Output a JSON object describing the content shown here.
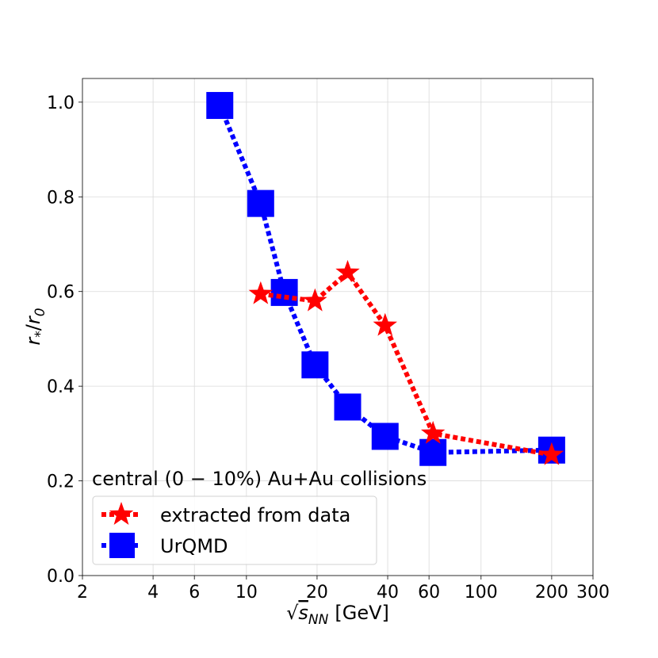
{
  "chart_data": {
    "type": "line",
    "xscale": "log",
    "xlabel_prefix": "√",
    "xlabel_var": "s",
    "xlabel_sub": "NN",
    "xlabel_unit": "[GeV]",
    "ylabel_var": "r",
    "ylabel_sub": "*",
    "ylabel_sep": "/",
    "ylabel_var2": "r",
    "ylabel_sub2": "0",
    "xlim": [
      2,
      300
    ],
    "ylim": [
      0.0,
      1.05
    ],
    "x_ticks": [
      {
        "value": 2,
        "label": "2"
      },
      {
        "value": 4,
        "label": "4"
      },
      {
        "value": 6,
        "label": "6"
      },
      {
        "value": 10,
        "label": "10"
      },
      {
        "value": 20,
        "label": "20"
      },
      {
        "value": 40,
        "label": "40"
      },
      {
        "value": 60,
        "label": "60"
      },
      {
        "value": 100,
        "label": "100"
      },
      {
        "value": 200,
        "label": "200"
      },
      {
        "value": 300,
        "label": "300"
      }
    ],
    "y_ticks": [
      {
        "value": 0.0,
        "label": "0.0"
      },
      {
        "value": 0.2,
        "label": "0.2"
      },
      {
        "value": 0.4,
        "label": "0.4"
      },
      {
        "value": 0.6,
        "label": "0.6"
      },
      {
        "value": 0.8,
        "label": "0.8"
      },
      {
        "value": 1.0,
        "label": "1.0"
      }
    ],
    "grid": true,
    "legend_title": "central (0 − 10%) Au+Au collisions",
    "legend_position": "bottom-left",
    "series": [
      {
        "name": "extracted from data",
        "color": "#ff0000",
        "marker": "star",
        "linestyle": "dotted",
        "x": [
          11.5,
          19.6,
          27,
          39,
          62.4,
          200
        ],
        "y": [
          0.595,
          0.58,
          0.64,
          0.528,
          0.3,
          0.255
        ]
      },
      {
        "name": "UrQMD",
        "color": "#0000ff",
        "marker": "square",
        "linestyle": "dotted",
        "x": [
          7.7,
          11.5,
          14.5,
          19.6,
          27,
          39,
          62.4,
          200
        ],
        "y": [
          0.993,
          0.786,
          0.598,
          0.445,
          0.356,
          0.294,
          0.26,
          0.265
        ]
      }
    ]
  }
}
